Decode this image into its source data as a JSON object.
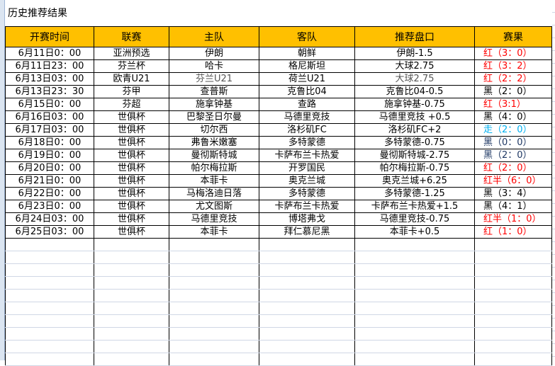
{
  "title": "历史推荐结果",
  "headers": [
    "开赛时间",
    "联赛",
    "主队",
    "客队",
    "推荐盘口",
    "赛果"
  ],
  "colors": {
    "header_bg": "#ffc000",
    "red": "#ff0000",
    "dark_blue": "#1f3864",
    "light_blue": "#00b0f0",
    "black": "#000000"
  },
  "rows": [
    {
      "time": "6月11日0：00",
      "league": "亚洲预选",
      "home": "伊朗",
      "away": "朝鲜",
      "pick": "伊朗-1.5",
      "result": "红（3：0）",
      "color": "#ff0000"
    },
    {
      "time": "6月11日23：00",
      "league": "芬兰杯",
      "home": "哈卡",
      "away": "格尼斯坦",
      "pick": "大球2.75",
      "result": "红（3：2）",
      "color": "#ff0000"
    },
    {
      "time": "6月13日03：00",
      "league": "欧青U21",
      "home": "芬兰U21",
      "away": "荷兰U21",
      "pick": "大球2.75",
      "result": "红（2：2）",
      "color": "#ff0000"
    },
    {
      "time": "6月13日23：30",
      "league": "芬甲",
      "home": "查普斯",
      "away": "克鲁比04",
      "pick": "克鲁比04-0.5",
      "result": "黑（2：0）",
      "color": "#000000"
    },
    {
      "time": "6月15日0：00",
      "league": "芬超",
      "home": "施拿钟基",
      "away": "查路",
      "pick": "施拿钟基-0.75",
      "result": "红（3:1）",
      "color": "#ff0000"
    },
    {
      "time": "6月16日03：00",
      "league": "世俱杯",
      "home": "巴黎圣日尔曼",
      "away": "马德里竞技",
      "pick": "马德里竞技 +0.5",
      "result": "黑（4：0）",
      "color": "#000000"
    },
    {
      "time": "6月17日03：00",
      "league": "世俱杯",
      "home": "切尔西",
      "away": "洛杉矶FC",
      "pick": "洛杉矶FC+2",
      "result": "走（2：0）",
      "color": "#00b0f0"
    },
    {
      "time": "6月18日0：00",
      "league": "世俱杯",
      "home": "弗鲁米嫩塞",
      "away": "多特蒙德",
      "pick": "多特蒙德-0.75",
      "result": "黑（0：0）",
      "color": "#1f3864"
    },
    {
      "time": "6月19日0：00",
      "league": "世俱杯",
      "home": "曼彻斯特城",
      "away": "卡萨布兰卡热爱",
      "pick": "曼彻斯特城-2.75",
      "result": "黑（2：0）",
      "color": "#1f3864"
    },
    {
      "time": "6月20日0：00",
      "league": "世俱杯",
      "home": "帕尔梅拉斯",
      "away": "开罗国民",
      "pick": "帕尔梅拉斯-0.75",
      "result": "红（2：0）",
      "color": "#ff0000"
    },
    {
      "time": "6月21日0：00",
      "league": "世俱杯",
      "home": "本菲卡",
      "away": "奥克兰城",
      "pick": "奥克兰城+6.25",
      "result": "红半（6：0）",
      "color": "#ff0000"
    },
    {
      "time": "6月22日0：00",
      "league": "世俱杯",
      "home": "马梅洛迪日落",
      "away": "多特蒙德",
      "pick": "多特蒙德-1.25",
      "result": "黑（3：4）",
      "color": "#000000"
    },
    {
      "time": "6月23日0：00",
      "league": "世俱杯",
      "home": "尤文图斯",
      "away": "卡萨布兰卡热爱",
      "pick": "卡萨布兰卡热爱+1.5",
      "result": "黑（4：1）",
      "color": "#000000"
    },
    {
      "time": "6月24日03：00",
      "league": "世俱杯",
      "home": "马德里竞技",
      "away": "博塔弗戈",
      "pick": "马德里竞技-0.75",
      "result": "红半（1：0）",
      "color": "#ff0000"
    },
    {
      "time": "6月25日03：00",
      "league": "世俱杯",
      "home": "本菲卡",
      "away": "拜仁慕尼黑",
      "pick": "本菲卡+0.5",
      "result": "红（1：0）",
      "color": "#ff0000"
    }
  ]
}
